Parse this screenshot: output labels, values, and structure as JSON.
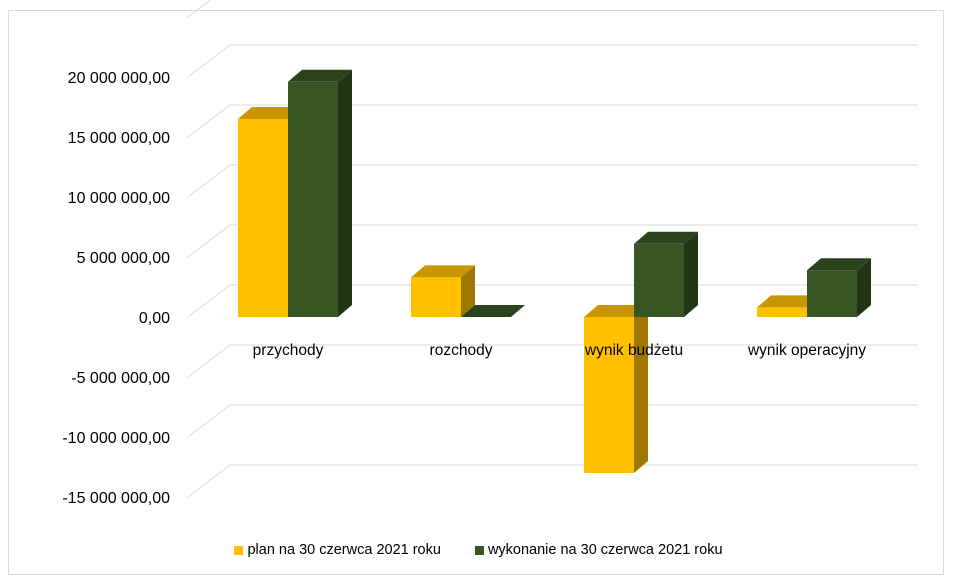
{
  "chart_data": {
    "type": "bar",
    "style": "3d-clustered-column",
    "categories": [
      "przychody",
      "rozchody",
      "wynik budżetu",
      "wynik operacyjny"
    ],
    "series": [
      {
        "name": "plan na 30 czerwca 2021 roku",
        "color": "#FFC000",
        "values": [
          16500000,
          3300000,
          -13000000,
          800000
        ]
      },
      {
        "name": "wykonanie na 30 czerwca 2021 roku",
        "color": "#375623",
        "values": [
          19600000,
          0,
          6100000,
          3900000
        ]
      }
    ],
    "yticks": [
      "20 000 000,00",
      "15 000 000,00",
      "10 000 000,00",
      "5 000 000,00",
      "0,00",
      "-5 000 000,00",
      "-10 000 000,00",
      "-15 000 000,00"
    ],
    "ylim": [
      -15000000,
      20000000
    ],
    "grid": true,
    "legend": "bottom"
  }
}
